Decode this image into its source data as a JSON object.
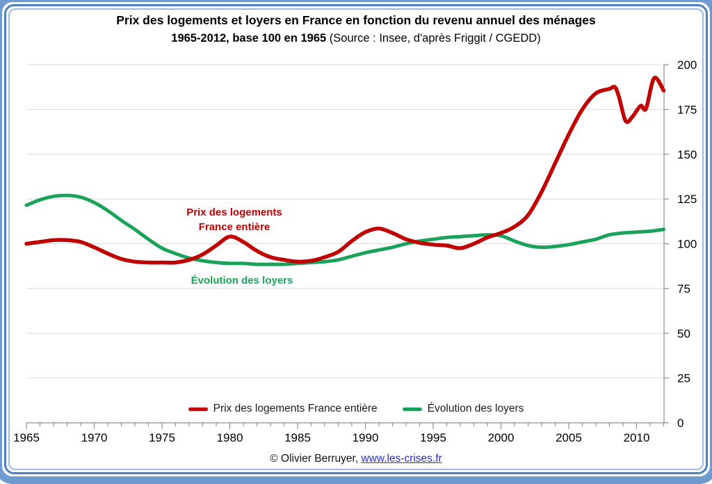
{
  "title": {
    "line1": "Prix des logements et loyers en France en fonction du revenu annuel des ménages",
    "line2_bold": "1965-2012, base 100 en 1965",
    "line2_normal": " (Source : Insee, d'après Friggit / CGEDD)"
  },
  "annotations": {
    "housing": {
      "line1": "Prix des logements",
      "line2": "France entière",
      "color": "#c00000"
    },
    "rents": {
      "text": "Évolution des loyers",
      "color": "#1ba25a"
    }
  },
  "legend": [
    {
      "label": "Prix des logements France entière",
      "color": "#c00000"
    },
    {
      "label": "Évolution des loyers",
      "color": "#1ba25a"
    }
  ],
  "footer": {
    "credit": "© Olivier Berruyer,",
    "link": "www.les-crises.fr"
  },
  "colors": {
    "housing_line": "#c00000",
    "rents_line": "#1ba25a",
    "gridline": "#d9d9d9",
    "axis": "#8c8c8c",
    "tick_label": "#000000",
    "link": "#2b2bcc",
    "frame_blue": "#4a7fc1"
  },
  "chart_data": {
    "type": "line",
    "title": "Prix des logements et loyers en France en fonction du revenu annuel des ménages, 1965-2012, base 100 en 1965",
    "source": "Insee, d'après Friggit / CGEDD",
    "xlabel": "",
    "ylabel": "",
    "x_range": [
      1965,
      2012
    ],
    "ylim": [
      0,
      200
    ],
    "y_ticks": [
      0,
      25,
      50,
      75,
      100,
      125,
      150,
      175,
      200
    ],
    "x_ticks_major": [
      1965,
      1970,
      1975,
      1980,
      1985,
      1990,
      1995,
      2000,
      2005,
      2010
    ],
    "x_tick_minor_step": 1,
    "grid": true,
    "legend_position": "bottom",
    "series": [
      {
        "name": "Évolution des loyers",
        "color": "#1ba25a",
        "width": 5,
        "x": [
          1965,
          1966,
          1967,
          1968,
          1969,
          1970,
          1971,
          1972,
          1973,
          1974,
          1975,
          1976,
          1977,
          1978,
          1979,
          1980,
          1981,
          1982,
          1983,
          1984,
          1985,
          1986,
          1987,
          1988,
          1989,
          1990,
          1991,
          1992,
          1993,
          1994,
          1995,
          1996,
          1997,
          1998,
          1999,
          2000,
          2001,
          2002,
          2003,
          2004,
          2005,
          2006,
          2007,
          2008,
          2009,
          2010,
          2011,
          2012
        ],
        "y": [
          121.5,
          124.5,
          126.5,
          127,
          126,
          123,
          118.5,
          113,
          108,
          102.5,
          97.5,
          94.5,
          92,
          90.5,
          89.5,
          89,
          89,
          88.5,
          88.5,
          88.5,
          89,
          89.5,
          90,
          91,
          93,
          95,
          96.5,
          98,
          100,
          101.5,
          102.5,
          103.5,
          104,
          104.5,
          105,
          104.5,
          101.5,
          99,
          98,
          98.5,
          99.5,
          101,
          102.5,
          105,
          106,
          106.5,
          107,
          108
        ]
      },
      {
        "name": "Prix des logements France entière",
        "color": "#c00000",
        "width": 5.5,
        "x": [
          1965,
          1966,
          1967,
          1968,
          1969,
          1970,
          1971,
          1972,
          1973,
          1974,
          1975,
          1976,
          1977,
          1978,
          1979,
          1980,
          1981,
          1982,
          1983,
          1984,
          1985,
          1986,
          1987,
          1988,
          1989,
          1990,
          1991,
          1992,
          1993,
          1994,
          1995,
          1996,
          1997,
          1998,
          1999,
          2000,
          2001,
          2002,
          2003,
          2004,
          2005,
          2006,
          2007,
          2008,
          2008.4,
          2008.7,
          2009.2,
          2009.7,
          2010.3,
          2010.7,
          2011.3,
          2012
        ],
        "y": [
          100,
          101,
          102,
          102,
          101,
          98,
          94.5,
          91.5,
          90,
          89.5,
          89.5,
          89.5,
          91,
          94,
          99,
          104,
          101,
          96,
          92.5,
          91,
          90,
          90.5,
          92.5,
          95.5,
          101.5,
          106.5,
          108.5,
          106,
          102.5,
          100.5,
          99.5,
          99,
          97.5,
          100,
          103.5,
          106,
          109.5,
          116,
          129,
          145,
          161,
          175,
          184,
          186.5,
          187.5,
          182,
          168.5,
          171,
          177,
          175.5,
          192.5,
          185.5
        ]
      }
    ]
  }
}
